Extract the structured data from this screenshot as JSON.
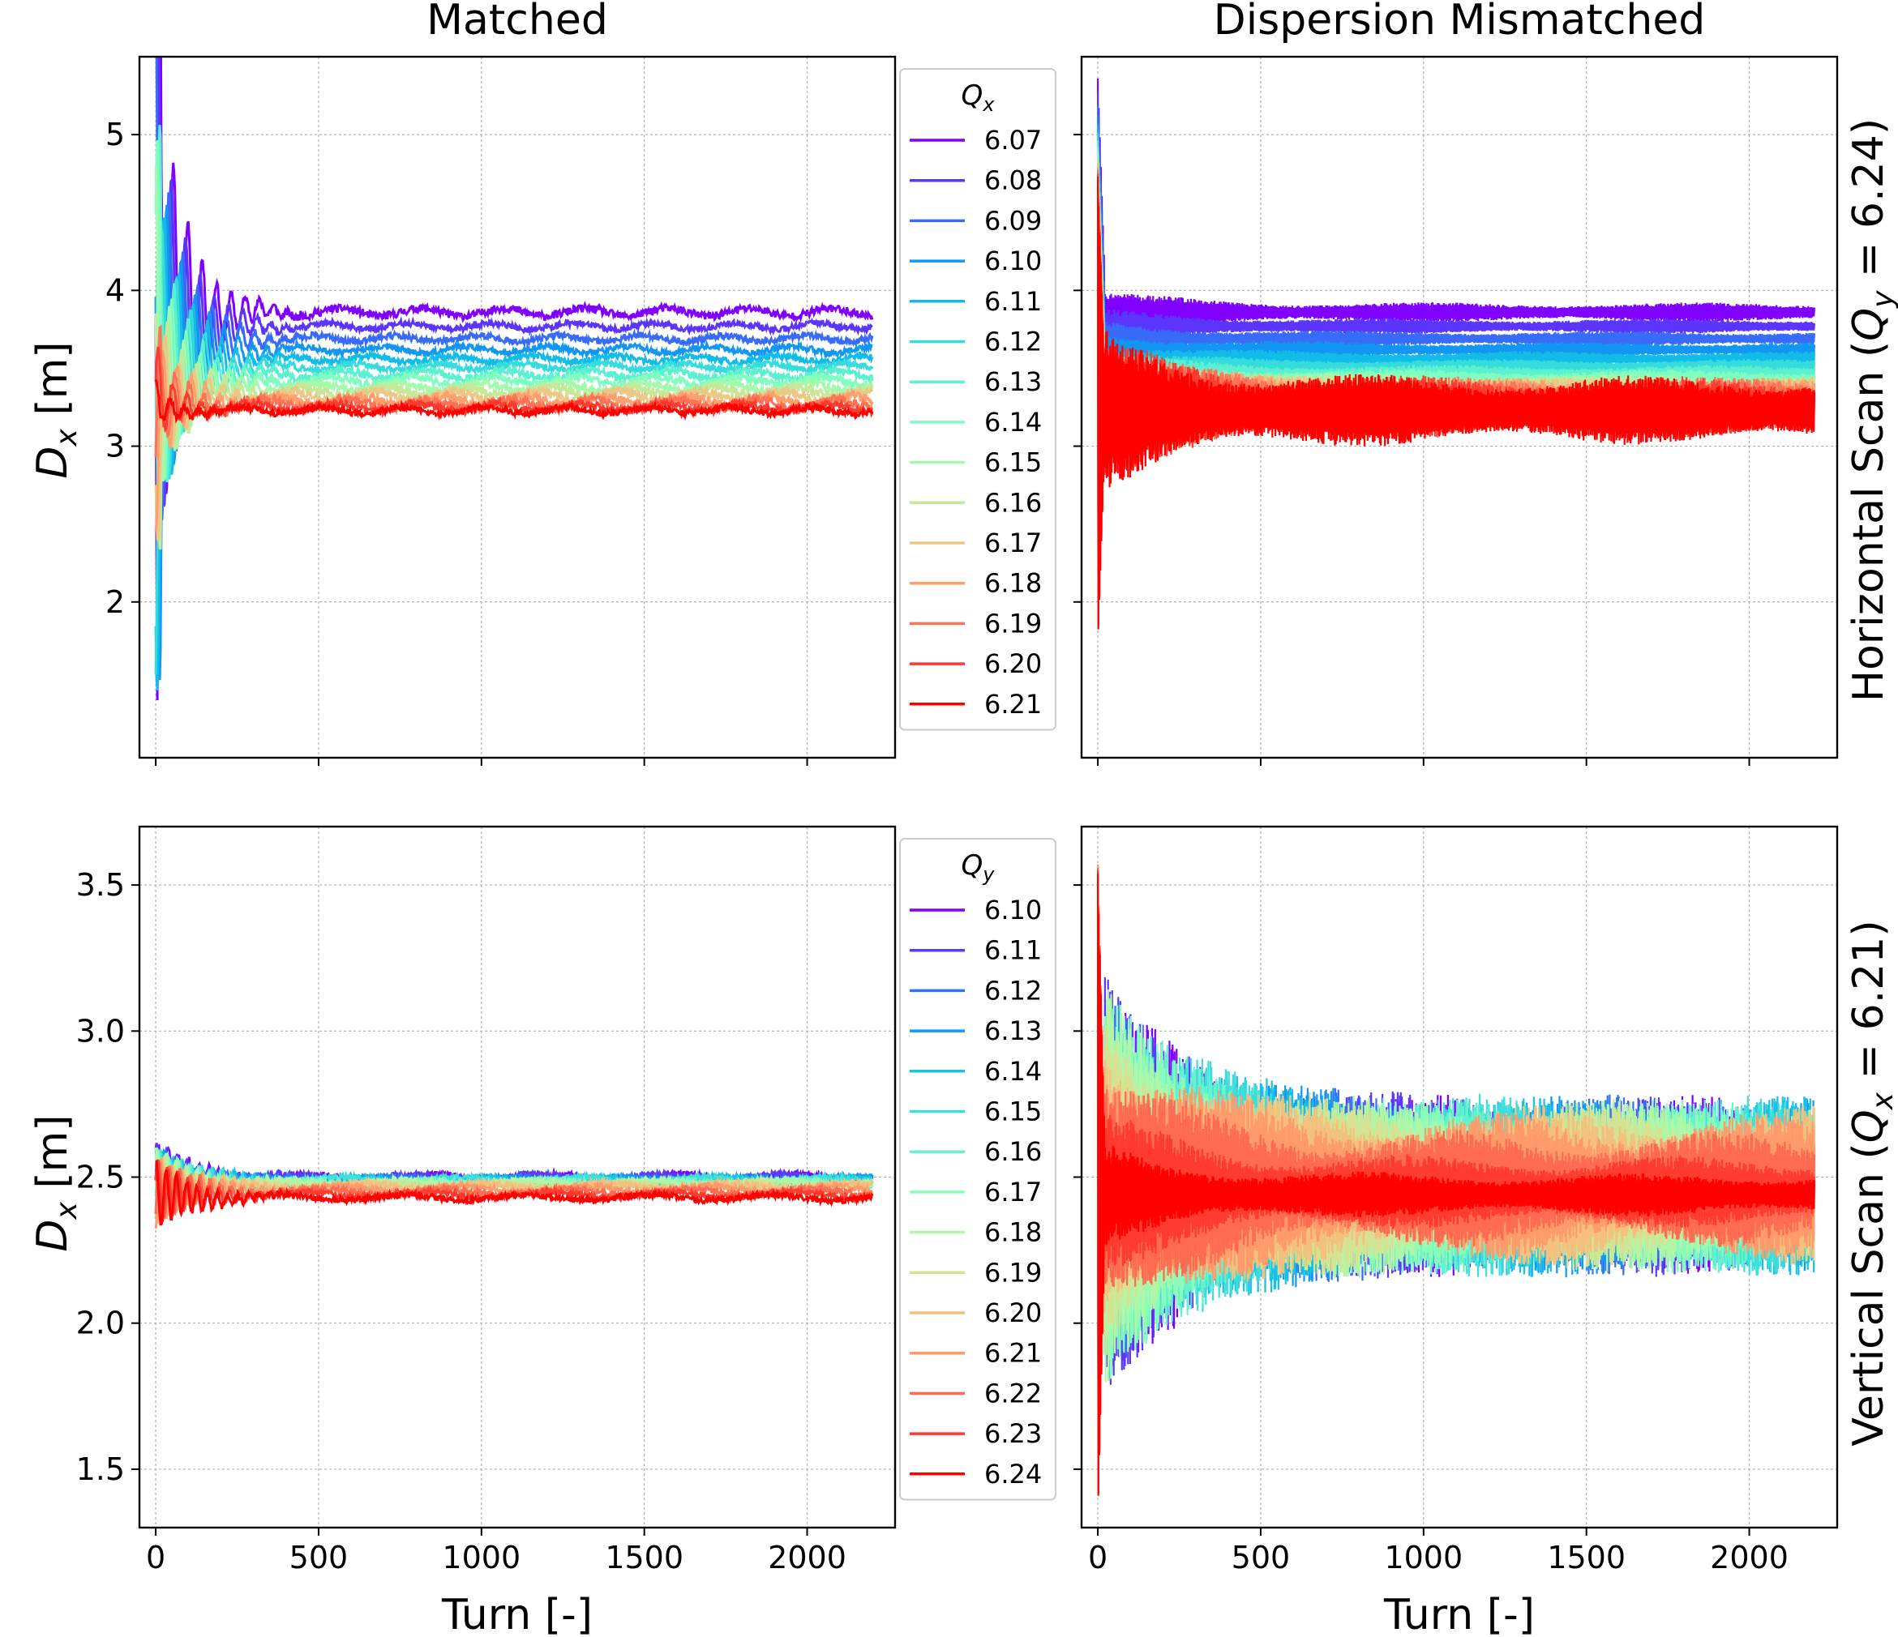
{
  "figure": {
    "col_titles": [
      "Matched",
      "Dispersion Mismatched"
    ],
    "row_titles": [
      "Horizontal Scan (Q_y = 6.24)",
      "Vertical Scan (Q_x = 6.21)"
    ],
    "row_title_parts": [
      {
        "pre": "Horizontal Scan (",
        "sym": "Q",
        "sub": "y",
        "post": " = 6.24)"
      },
      {
        "pre": "Vertical Scan (",
        "sym": "Q",
        "sub": "x",
        "post": " = 6.21)"
      }
    ],
    "xlabel": "Turn [-]",
    "ylabel": "D_x [m]",
    "ylabel_parts": {
      "sym": "D",
      "sub": "x",
      "post": " [m]"
    },
    "legends": [
      {
        "title": "Q_x",
        "title_sym": "Q",
        "title_sub": "x"
      },
      {
        "title": "Q_y",
        "title_sym": "Q",
        "title_sub": "y"
      }
    ]
  },
  "chart_data": [
    {
      "type": "line",
      "panel": "top-left",
      "title": "Matched",
      "xlabel": "",
      "ylabel": "D_x [m]",
      "xlim": [
        -50,
        2270
      ],
      "ylim": [
        1.0,
        5.5
      ],
      "xticks": [
        0,
        500,
        1000,
        1500,
        2000
      ],
      "xtick_labels": [],
      "yticks": [
        2,
        3,
        4,
        5
      ],
      "ytick_labels": [
        "2",
        "3",
        "4",
        "5"
      ],
      "grid": true,
      "legend": {
        "title": "Q_x",
        "placement": "right, outside axes"
      },
      "turn_end": 2200,
      "series": [
        {
          "name": "6.07",
          "color": "#8000ff",
          "steady": 3.86,
          "spread": 0.05
        },
        {
          "name": "6.08",
          "color": "#5c35fc",
          "steady": 3.77,
          "spread": 0.04
        },
        {
          "name": "6.09",
          "color": "#386bf8",
          "steady": 3.69,
          "spread": 0.04
        },
        {
          "name": "6.10",
          "color": "#1396f1",
          "steady": 3.62,
          "spread": 0.04
        },
        {
          "name": "6.11",
          "color": "#12bce9",
          "steady": 3.56,
          "spread": 0.04
        },
        {
          "name": "6.12",
          "color": "#36dbdc",
          "steady": 3.51,
          "spread": 0.04
        },
        {
          "name": "6.13",
          "color": "#5bf0cf",
          "steady": 3.46,
          "spread": 0.05
        },
        {
          "name": "6.14",
          "color": "#7ffebf",
          "steady": 3.42,
          "spread": 0.05
        },
        {
          "name": "6.15",
          "color": "#a4faac",
          "steady": 3.38,
          "spread": 0.05
        },
        {
          "name": "6.16",
          "color": "#c6e898",
          "steady": 3.35,
          "spread": 0.06
        },
        {
          "name": "6.17",
          "color": "#ebc886",
          "steady": 3.32,
          "spread": 0.06
        },
        {
          "name": "6.18",
          "color": "#ff9f6d",
          "steady": 3.29,
          "spread": 0.06
        },
        {
          "name": "6.19",
          "color": "#ff7256",
          "steady": 3.27,
          "spread": 0.06
        },
        {
          "name": "6.20",
          "color": "#ff3a2f",
          "steady": 3.25,
          "spread": 0.05
        },
        {
          "name": "6.21",
          "color": "#ff0000",
          "steady": 3.23,
          "spread": 0.04
        }
      ]
    },
    {
      "type": "line",
      "panel": "top-right",
      "title": "Dispersion Mismatched",
      "xlabel": "",
      "ylabel": "",
      "xlim": [
        -50,
        2270
      ],
      "ylim": [
        1.0,
        5.5
      ],
      "xticks": [
        0,
        500,
        1000,
        1500,
        2000
      ],
      "xtick_labels": [],
      "yticks": [
        2,
        3,
        4,
        5
      ],
      "ytick_labels": [],
      "grid": true,
      "turn_end": 2200,
      "series": [
        {
          "name": "6.07",
          "color": "#8000ff",
          "steady": 3.86,
          "spread": 0.05
        },
        {
          "name": "6.08",
          "color": "#5c35fc",
          "steady": 3.77,
          "spread": 0.04
        },
        {
          "name": "6.09",
          "color": "#386bf8",
          "steady": 3.69,
          "spread": 0.04
        },
        {
          "name": "6.10",
          "color": "#1396f1",
          "steady": 3.62,
          "spread": 0.04
        },
        {
          "name": "6.11",
          "color": "#12bce9",
          "steady": 3.56,
          "spread": 0.04
        },
        {
          "name": "6.12",
          "color": "#36dbdc",
          "steady": 3.51,
          "spread": 0.04
        },
        {
          "name": "6.13",
          "color": "#5bf0cf",
          "steady": 3.46,
          "spread": 0.05
        },
        {
          "name": "6.14",
          "color": "#7ffebf",
          "steady": 3.42,
          "spread": 0.06
        },
        {
          "name": "6.15",
          "color": "#a4faac",
          "steady": 3.38,
          "spread": 0.07
        },
        {
          "name": "6.16",
          "color": "#c6e898",
          "steady": 3.35,
          "spread": 0.08
        },
        {
          "name": "6.17",
          "color": "#ebc886",
          "steady": 3.32,
          "spread": 0.1
        },
        {
          "name": "6.18",
          "color": "#ff9f6d",
          "steady": 3.29,
          "spread": 0.12
        },
        {
          "name": "6.19",
          "color": "#ff7256",
          "steady": 3.27,
          "spread": 0.14
        },
        {
          "name": "6.20",
          "color": "#ff3a2f",
          "steady": 3.25,
          "spread": 0.16
        },
        {
          "name": "6.21",
          "color": "#ff0000",
          "steady": 3.23,
          "spread": 0.18
        }
      ]
    },
    {
      "type": "line",
      "panel": "bottom-left",
      "title": "",
      "xlabel": "Turn [-]",
      "ylabel": "D_x [m]",
      "xlim": [
        -50,
        2270
      ],
      "ylim": [
        1.3,
        3.7
      ],
      "xticks": [
        0,
        500,
        1000,
        1500,
        2000
      ],
      "xtick_labels": [
        "0",
        "500",
        "1000",
        "1500",
        "2000"
      ],
      "yticks": [
        1.5,
        2.0,
        2.5,
        3.0,
        3.5
      ],
      "ytick_labels": [
        "1.5",
        "2.0",
        "2.5",
        "3.0",
        "3.5"
      ],
      "grid": true,
      "legend": {
        "title": "Q_y",
        "placement": "right, outside axes"
      },
      "turn_end": 2200,
      "series": [
        {
          "name": "6.10",
          "color": "#8000ff",
          "steady": 2.5,
          "spread": 0.01
        },
        {
          "name": "6.11",
          "color": "#5a38fc",
          "steady": 2.5,
          "spread": 0.01
        },
        {
          "name": "6.12",
          "color": "#3470f6",
          "steady": 2.49,
          "spread": 0.01
        },
        {
          "name": "6.13",
          "color": "#0e9cf0",
          "steady": 2.49,
          "spread": 0.01
        },
        {
          "name": "6.14",
          "color": "#18c2e6",
          "steady": 2.49,
          "spread": 0.01
        },
        {
          "name": "6.15",
          "color": "#3edfd9",
          "steady": 2.49,
          "spread": 0.01
        },
        {
          "name": "6.16",
          "color": "#64f3cb",
          "steady": 2.48,
          "spread": 0.01
        },
        {
          "name": "6.17",
          "color": "#8afeb9",
          "steady": 2.48,
          "spread": 0.01
        },
        {
          "name": "6.18",
          "color": "#b0f6a6",
          "steady": 2.48,
          "spread": 0.01
        },
        {
          "name": "6.19",
          "color": "#d6e292",
          "steady": 2.47,
          "spread": 0.01
        },
        {
          "name": "6.20",
          "color": "#f4c07e",
          "steady": 2.47,
          "spread": 0.01
        },
        {
          "name": "6.21",
          "color": "#ff9a6a",
          "steady": 2.46,
          "spread": 0.01
        },
        {
          "name": "6.22",
          "color": "#ff6b51",
          "steady": 2.45,
          "spread": 0.01
        },
        {
          "name": "6.23",
          "color": "#ff3a2f",
          "steady": 2.44,
          "spread": 0.01
        },
        {
          "name": "6.24",
          "color": "#ff0000",
          "steady": 2.43,
          "spread": 0.01
        }
      ]
    },
    {
      "type": "line",
      "panel": "bottom-right",
      "title": "",
      "xlabel": "Turn [-]",
      "ylabel": "",
      "xlim": [
        -50,
        2270
      ],
      "ylim": [
        1.3,
        3.7
      ],
      "xticks": [
        0,
        500,
        1000,
        1500,
        2000
      ],
      "xtick_labels": [
        "0",
        "500",
        "1000",
        "1500",
        "2000"
      ],
      "yticks": [
        1.5,
        2.0,
        2.5,
        3.0,
        3.5
      ],
      "ytick_labels": [],
      "grid": true,
      "turn_end": 2200,
      "series": [
        {
          "name": "6.10",
          "color": "#8000ff",
          "steady": 2.47,
          "spread": 0.25
        },
        {
          "name": "6.11",
          "color": "#5a38fc",
          "steady": 2.47,
          "spread": 0.25
        },
        {
          "name": "6.12",
          "color": "#3470f6",
          "steady": 2.47,
          "spread": 0.25
        },
        {
          "name": "6.13",
          "color": "#0e9cf0",
          "steady": 2.47,
          "spread": 0.25
        },
        {
          "name": "6.14",
          "color": "#18c2e6",
          "steady": 2.47,
          "spread": 0.25
        },
        {
          "name": "6.15",
          "color": "#3edfd9",
          "steady": 2.47,
          "spread": 0.25
        },
        {
          "name": "6.16",
          "color": "#64f3cb",
          "steady": 2.47,
          "spread": 0.24
        },
        {
          "name": "6.17",
          "color": "#8afeb9",
          "steady": 2.47,
          "spread": 0.24
        },
        {
          "name": "6.18",
          "color": "#b0f6a6",
          "steady": 2.47,
          "spread": 0.24
        },
        {
          "name": "6.19",
          "color": "#d6e292",
          "steady": 2.47,
          "spread": 0.23
        },
        {
          "name": "6.20",
          "color": "#f4c07e",
          "steady": 2.47,
          "spread": 0.22
        },
        {
          "name": "6.21",
          "color": "#ff9a6a",
          "steady": 2.47,
          "spread": 0.2
        },
        {
          "name": "6.22",
          "color": "#ff6b51",
          "steady": 2.46,
          "spread": 0.16
        },
        {
          "name": "6.23",
          "color": "#ff3a2f",
          "steady": 2.45,
          "spread": 0.1
        },
        {
          "name": "6.24",
          "color": "#ff0000",
          "steady": 2.44,
          "spread": 0.06
        }
      ]
    }
  ]
}
